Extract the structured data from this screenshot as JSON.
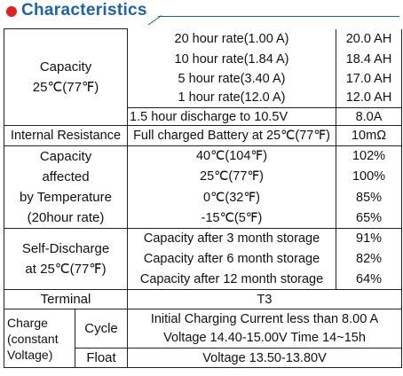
{
  "header": {
    "title": "Characteristics"
  },
  "capacity": {
    "label": [
      "Capacity",
      "25℃(77℉)"
    ],
    "rows": [
      [
        "20 hour rate(1.00 A)",
        "20.0 AH"
      ],
      [
        "10 hour rate(1.84 A)",
        "18.4 AH"
      ],
      [
        "5 hour rate(3.40 A)",
        "17.0 AH"
      ],
      [
        "1 hour rate(12.0 A)",
        "12.0 AH"
      ],
      [
        "1.5 hour discharge to 10.5V",
        "8.0A"
      ]
    ]
  },
  "internal_resistance": [
    "Internal Resistance",
    "Full charged Battery at 25℃(77℉)",
    "10mΩ"
  ],
  "temperature": {
    "label": [
      "Capacity",
      "affected",
      "by Temperature",
      "(20hour rate)"
    ],
    "rows": [
      [
        "40℃(104℉)",
        "102%"
      ],
      [
        "25℃(77℉)",
        "100%"
      ],
      [
        "0℃(32℉)",
        "85%"
      ],
      [
        "-15℃(5℉)",
        "65%"
      ]
    ]
  },
  "self_discharge": {
    "label": [
      "Self-Discharge",
      "at 25℃(77℉)"
    ],
    "rows": [
      [
        "Capacity after 3 month storage",
        "91%"
      ],
      [
        "Capacity after 6 month storage",
        "82%"
      ],
      [
        "Capacity after 12 month storage",
        "64%"
      ]
    ]
  },
  "terminal": [
    "Terminal",
    "T3"
  ],
  "charge": {
    "label": [
      "Charge",
      "(constant",
      "Voltage)"
    ],
    "cycle": {
      "label": "Cycle",
      "rows": [
        "Initial Charging Current less than 8.00 A",
        "Voltage 14.40-15.00V  Time 14~15h"
      ]
    },
    "float": {
      "label": "Float",
      "value": "Voltage 13.50-13.80V"
    }
  }
}
